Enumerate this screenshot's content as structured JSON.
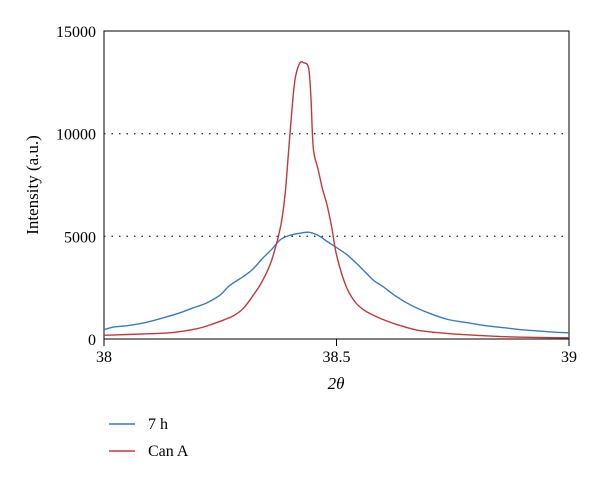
{
  "chart_data": {
    "type": "line",
    "title": "",
    "xlabel": "2θ",
    "ylabel": "Intensity (a.u.)",
    "xlim": [
      38,
      39
    ],
    "ylim": [
      0,
      15000
    ],
    "xticks": [
      "38",
      "38.5",
      "39"
    ],
    "yticks": [
      "0",
      "5000",
      "10000",
      "15000"
    ],
    "grid": "horizontal dotted at 5000 and 10000",
    "legend_position": "bottom-left, below plot",
    "series": [
      {
        "name": "7 h",
        "color": "#3a7bbf",
        "x": [
          38.0,
          38.02,
          38.05,
          38.08,
          38.1,
          38.13,
          38.16,
          38.19,
          38.22,
          38.25,
          38.27,
          38.3,
          38.32,
          38.34,
          38.36,
          38.38,
          38.4,
          38.42,
          38.44,
          38.46,
          38.48,
          38.5,
          38.52,
          38.54,
          38.56,
          38.58,
          38.6,
          38.63,
          38.66,
          38.7,
          38.74,
          38.78,
          38.82,
          38.86,
          38.9,
          38.94,
          38.97,
          39.0
        ],
        "y": [
          450,
          580,
          650,
          760,
          860,
          1050,
          1250,
          1500,
          1750,
          2150,
          2600,
          3050,
          3400,
          3900,
          4350,
          4850,
          5050,
          5150,
          5200,
          5050,
          4750,
          4450,
          4150,
          3750,
          3300,
          2850,
          2550,
          2050,
          1650,
          1250,
          950,
          800,
          650,
          550,
          450,
          380,
          330,
          300
        ]
      },
      {
        "name": "Can A",
        "color": "#c0393b",
        "x": [
          38.0,
          38.05,
          38.1,
          38.15,
          38.2,
          38.23,
          38.26,
          38.28,
          38.3,
          38.32,
          38.34,
          38.36,
          38.38,
          38.39,
          38.4,
          38.41,
          38.42,
          38.43,
          38.44,
          38.445,
          38.45,
          38.46,
          38.47,
          38.48,
          38.49,
          38.5,
          38.52,
          38.54,
          38.56,
          38.58,
          38.6,
          38.63,
          38.67,
          38.7,
          38.75,
          38.8,
          38.85,
          38.9,
          38.95,
          39.0
        ],
        "y": [
          180,
          220,
          260,
          320,
          500,
          700,
          950,
          1150,
          1500,
          2100,
          2800,
          3800,
          5500,
          7200,
          10000,
          12500,
          13400,
          13450,
          13200,
          11800,
          9300,
          8300,
          7300,
          6500,
          5400,
          4100,
          2600,
          1800,
          1400,
          1150,
          950,
          700,
          450,
          350,
          250,
          180,
          120,
          90,
          70,
          60
        ]
      }
    ]
  }
}
